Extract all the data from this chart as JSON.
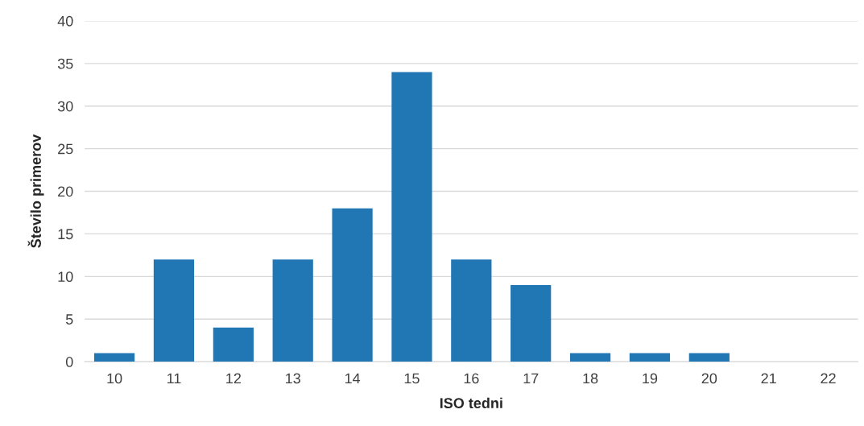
{
  "chart_data": {
    "type": "bar",
    "xlabel": "ISO tedni",
    "ylabel": "Število primerov",
    "categories": [
      "10",
      "11",
      "12",
      "13",
      "14",
      "15",
      "16",
      "17",
      "18",
      "19",
      "20",
      "21",
      "22"
    ],
    "values": [
      1,
      12,
      4,
      12,
      18,
      34,
      12,
      9,
      1,
      1,
      1,
      0,
      0
    ],
    "color": "#2077b4",
    "ylim": [
      0,
      40
    ],
    "yticks": [
      0,
      5,
      10,
      15,
      20,
      25,
      30,
      35,
      40
    ],
    "grid": "y",
    "legend": false
  }
}
